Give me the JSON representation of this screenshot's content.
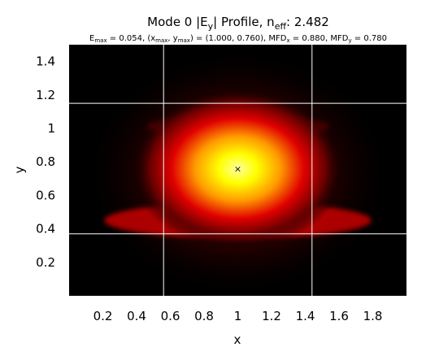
{
  "chart_data": {
    "type": "heatmap",
    "title": {
      "prefix": "Mode 0 |E",
      "sub1": "y",
      "middle": "| Profile, n",
      "sub2": "eff",
      "suffix": ": 2.482"
    },
    "subtitle": {
      "p1": "E",
      "s1": "max",
      "p2": " = 0.054, (x",
      "s2": "max",
      "p3": ", y",
      "s3": "max",
      "p4": ") = (1.000, 0.760), MFD",
      "s4": "x",
      "p5": " = 0.880, MFD",
      "s5": "y",
      "p6": " = 0.780"
    },
    "xlabel": "x",
    "ylabel": "y",
    "xlim": [
      0,
      2
    ],
    "ylim": [
      0,
      1.5
    ],
    "xticks": [
      0.2,
      0.4,
      0.6,
      0.8,
      1.0,
      1.2,
      1.4,
      1.6,
      1.8
    ],
    "xtick_labels": [
      "0.2",
      "0.4",
      "0.6",
      "0.8",
      "1",
      "1.2",
      "1.4",
      "1.6",
      "1.8"
    ],
    "yticks": [
      0.2,
      0.4,
      0.6,
      0.8,
      1.0,
      1.2,
      1.4
    ],
    "ytick_labels": [
      "0.2",
      "0.4",
      "0.6",
      "0.8",
      "1",
      "1.2",
      "1.4"
    ],
    "colormap": "hot",
    "peak": {
      "x": 1.0,
      "y": 0.76,
      "marker": "×"
    },
    "mfd": {
      "x": 0.88,
      "y": 0.78
    },
    "emax": 0.054,
    "neff": 2.482,
    "guide_lines": {
      "x": [
        0.56,
        1.44
      ],
      "y": [
        0.37,
        1.15
      ]
    },
    "guide_color": "#ffffff",
    "background_color": "#000000"
  }
}
